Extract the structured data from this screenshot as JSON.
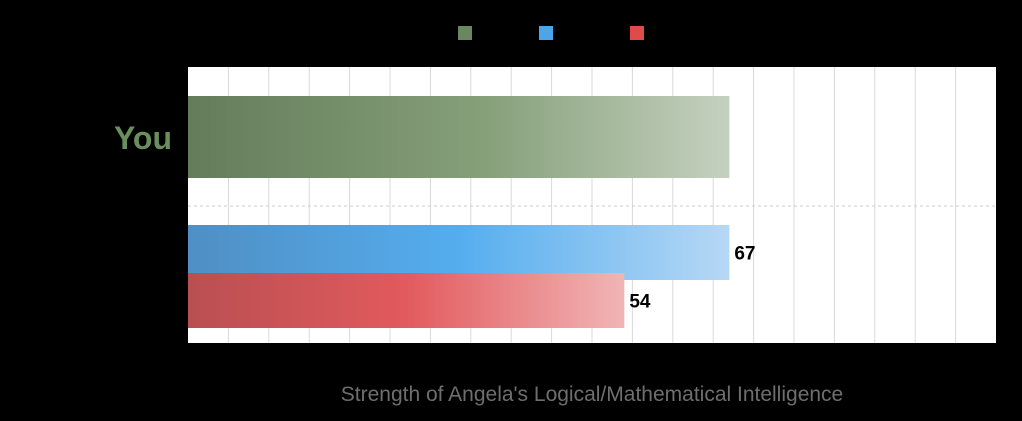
{
  "chart_data": {
    "type": "bar",
    "orientation": "horizontal",
    "title": "",
    "xlabel": "Strength of Angela's Logical/Mathematical Intelligence",
    "ylabel": "",
    "xlim": [
      0,
      100
    ],
    "grid": true,
    "legend_position": "top",
    "categories": [
      "You",
      ""
    ],
    "series": [
      {
        "color": "#6b8761",
        "values": [
          67,
          null
        ],
        "label_shown": false
      },
      {
        "color": "#4aa5ea",
        "values": [
          null,
          67
        ],
        "label_shown": true
      },
      {
        "color": "#df4a4a",
        "values": [
          null,
          54
        ],
        "label_shown": true
      }
    ]
  }
}
